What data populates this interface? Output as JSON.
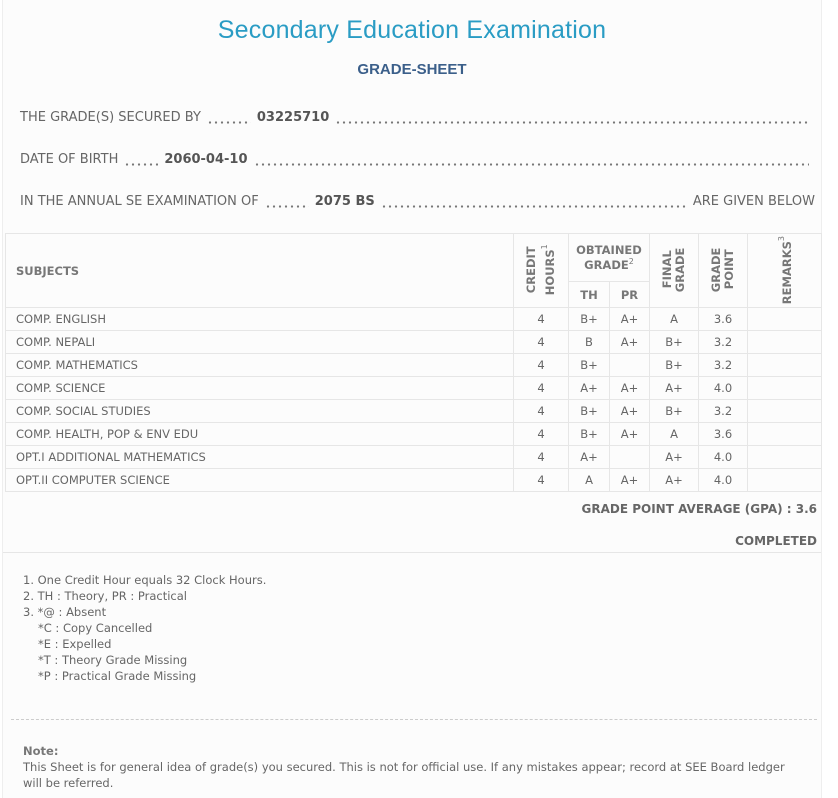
{
  "header": {
    "title": "Secondary Education Examination",
    "subtitle": "GRADE-SHEET"
  },
  "info": {
    "secured_by_label": "THE GRADE(S) SECURED BY",
    "symbol_no": "03225710",
    "dob_label": "DATE OF BIRTH",
    "dob": "2060-04-10",
    "exam_label": "IN THE ANNUAL SE EXAMINATION OF",
    "exam_year": "2075 BS",
    "exam_suffix": "ARE GIVEN BELOW"
  },
  "table": {
    "headers": {
      "subjects": "SUBJECTS",
      "credit": "CREDIT HOURS",
      "credit_sup": "1",
      "obtained": "OBTAINED GRADE",
      "obtained_sup": "2",
      "th": "TH",
      "pr": "PR",
      "final": "FINAL GRADE",
      "point": "GRADE POINT",
      "remarks": "REMARKS",
      "remarks_sup": "3"
    },
    "rows": [
      {
        "subject": "COMP. ENGLISH",
        "credit": "4",
        "th": "B+",
        "pr": "A+",
        "final": "A",
        "point": "3.6",
        "remarks": ""
      },
      {
        "subject": "COMP. NEPALI",
        "credit": "4",
        "th": "B",
        "pr": "A+",
        "final": "B+",
        "point": "3.2",
        "remarks": ""
      },
      {
        "subject": "COMP. MATHEMATICS",
        "credit": "4",
        "th": "B+",
        "pr": "",
        "final": "B+",
        "point": "3.2",
        "remarks": ""
      },
      {
        "subject": "COMP. SCIENCE",
        "credit": "4",
        "th": "A+",
        "pr": "A+",
        "final": "A+",
        "point": "4.0",
        "remarks": ""
      },
      {
        "subject": "COMP. SOCIAL STUDIES",
        "credit": "4",
        "th": "B+",
        "pr": "A+",
        "final": "B+",
        "point": "3.2",
        "remarks": ""
      },
      {
        "subject": "COMP. HEALTH, POP & ENV EDU",
        "credit": "4",
        "th": "B+",
        "pr": "A+",
        "final": "A",
        "point": "3.6",
        "remarks": ""
      },
      {
        "subject": "OPT.I ADDITIONAL MATHEMATICS",
        "credit": "4",
        "th": "A+",
        "pr": "",
        "final": "A+",
        "point": "4.0",
        "remarks": ""
      },
      {
        "subject": "OPT.II COMPUTER SCIENCE",
        "credit": "4",
        "th": "A",
        "pr": "A+",
        "final": "A+",
        "point": "4.0",
        "remarks": ""
      }
    ]
  },
  "summary": {
    "gpa_label": "GRADE POINT AVERAGE (GPA) : 3.6",
    "status": "COMPLETED"
  },
  "footnotes": [
    "1. One Credit Hour equals 32 Clock Hours.",
    "2. TH : Theory, PR : Practical",
    "3. *@ : Absent",
    "*C : Copy Cancelled",
    "*E : Expelled",
    "*T : Theory Grade Missing",
    "*P : Practical Grade Missing"
  ],
  "note": {
    "label": "Note:",
    "text": "This Sheet is for general idea of grade(s) you secured. This is not for official use. If any mistakes appear; record at SEE Board ledger will be referred."
  },
  "colors": {
    "title": "#2a9cc4",
    "subtitle": "#3b5f8a",
    "text": "#666666",
    "background": "#fcfcfc"
  }
}
